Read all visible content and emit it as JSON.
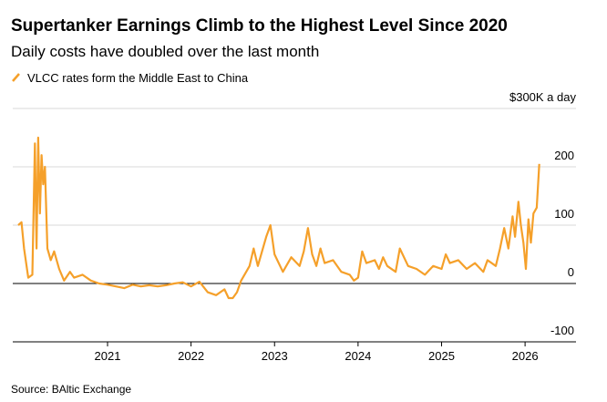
{
  "chart_data": {
    "type": "line",
    "title": "Supertanker Earnings Climb to the Highest Level Since 2020",
    "subtitle": "Daily costs have doubled over the last month",
    "source": "Source: BAltic Exchange",
    "x": [
      2019.93,
      2019.97,
      2020.0,
      2020.05,
      2020.1,
      2020.13,
      2020.15,
      2020.17,
      2020.19,
      2020.21,
      2020.23,
      2020.25,
      2020.28,
      2020.32,
      2020.36,
      2020.42,
      2020.48,
      2020.55,
      2020.6,
      2020.7,
      2020.8,
      2020.9,
      2021.0,
      2021.1,
      2021.2,
      2021.3,
      2021.4,
      2021.5,
      2021.6,
      2021.7,
      2021.8,
      2021.9,
      2022.0,
      2022.1,
      2022.2,
      2022.3,
      2022.4,
      2022.45,
      2022.5,
      2022.55,
      2022.6,
      2022.7,
      2022.75,
      2022.8,
      2022.85,
      2022.9,
      2022.95,
      2023.0,
      2023.1,
      2023.2,
      2023.3,
      2023.35,
      2023.4,
      2023.45,
      2023.5,
      2023.55,
      2023.6,
      2023.7,
      2023.8,
      2023.9,
      2023.95,
      2024.0,
      2024.05,
      2024.1,
      2024.2,
      2024.25,
      2024.3,
      2024.35,
      2024.45,
      2024.5,
      2024.6,
      2024.7,
      2024.8,
      2024.9,
      2025.0,
      2025.05,
      2025.1,
      2025.2,
      2025.3,
      2025.4,
      2025.5,
      2025.55,
      2025.65,
      2025.7,
      2025.75,
      2025.8,
      2025.85,
      2025.88,
      2025.92,
      2025.95,
      2025.98,
      2026.01,
      2026.04,
      2026.07,
      2026.1,
      2026.14,
      2026.17
    ],
    "series": [
      {
        "name": "VLCC rates form the Middle East to China",
        "color": "#f5a02a",
        "values": [
          100,
          105,
          60,
          10,
          15,
          240,
          60,
          250,
          120,
          220,
          170,
          200,
          60,
          40,
          55,
          25,
          5,
          20,
          10,
          15,
          5,
          0,
          -2,
          -5,
          -8,
          -2,
          -5,
          -3,
          -5,
          -3,
          0,
          2,
          -5,
          3,
          -15,
          -20,
          -10,
          -25,
          -25,
          -15,
          5,
          30,
          60,
          30,
          55,
          80,
          100,
          50,
          20,
          45,
          30,
          55,
          95,
          50,
          30,
          60,
          35,
          40,
          20,
          15,
          5,
          10,
          55,
          35,
          40,
          25,
          45,
          30,
          20,
          60,
          30,
          25,
          15,
          30,
          25,
          50,
          35,
          40,
          25,
          35,
          20,
          40,
          30,
          60,
          95,
          60,
          115,
          80,
          140,
          100,
          70,
          25,
          110,
          70,
          120,
          130,
          205
        ]
      }
    ],
    "xlim": [
      2019.865,
      2026.61
    ],
    "ylim": [
      -100,
      300
    ],
    "xticks": [
      2021,
      2022,
      2023,
      2024,
      2025,
      2026
    ],
    "yticks": [
      -100,
      0,
      100,
      200,
      {
        "value": 300,
        "label": "$300K a day"
      }
    ],
    "grid": true
  }
}
